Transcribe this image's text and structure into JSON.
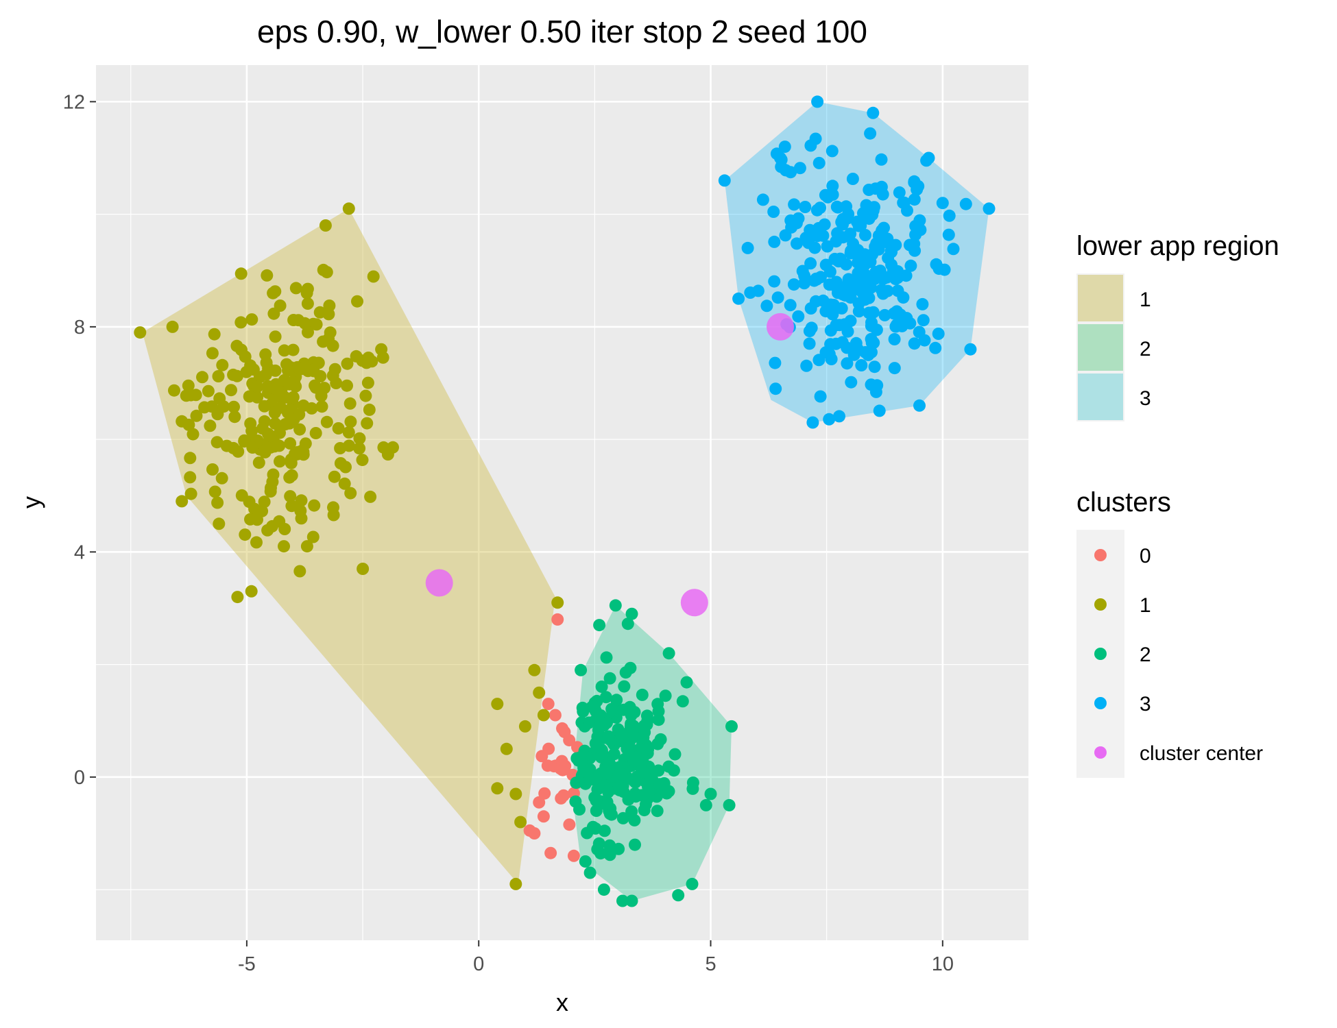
{
  "chart_data": {
    "type": "scatter",
    "title": "eps 0.90, w_lower 0.50 iter stop 2 seed 100",
    "xlabel": "x",
    "ylabel": "y",
    "xlim": [
      -8.25,
      11.85
    ],
    "ylim": [
      -2.9,
      12.65
    ],
    "x_ticks": [
      -5,
      0,
      5,
      10
    ],
    "y_ticks": [
      0,
      4,
      8,
      12
    ],
    "x_tick_labels": [
      "-5",
      "0",
      "5",
      "10"
    ],
    "y_tick_labels": [
      "0",
      "4",
      "8",
      "12"
    ],
    "grid": true,
    "legend_position": "right",
    "colors": {
      "panel_background": "#ebebeb",
      "grid": "#ffffff",
      "cluster_0": "#f8766d",
      "cluster_1": "#a3a500",
      "cluster_2": "#00bf7d",
      "cluster_3": "#00b0f6",
      "cluster_center": "#e76bf3",
      "region_1": "#e0d6a8",
      "region_2": "#a6ddbc",
      "region_3": "#a6dde2"
    },
    "regions_legend": {
      "title": "lower app region",
      "entries": [
        {
          "label": "1",
          "fill": "#dfd9a9"
        },
        {
          "label": "2",
          "fill": "#aee0c0"
        },
        {
          "label": "3",
          "fill": "#aee1e4"
        }
      ]
    },
    "clusters_legend": {
      "title": "clusters",
      "entries": [
        {
          "label": "0",
          "color": "#f8766d"
        },
        {
          "label": "1",
          "color": "#a3a500"
        },
        {
          "label": "2",
          "color": "#00bf7d"
        },
        {
          "label": "3",
          "color": "#00b0f6"
        },
        {
          "label": "cluster center",
          "color": "#e76bf3"
        }
      ]
    },
    "regions": [
      {
        "name": "1",
        "fill": "#ccb93f",
        "opacity": 0.4,
        "polygon": [
          [
            -7.25,
            7.9
          ],
          [
            -2.8,
            10.1
          ],
          [
            1.65,
            3.2
          ],
          [
            0.85,
            -1.9
          ],
          [
            -6.3,
            5.0
          ]
        ]
      },
      {
        "name": "2",
        "fill": "#00bf7d",
        "opacity": 0.3,
        "polygon": [
          [
            2.95,
            3.05
          ],
          [
            4.1,
            2.2
          ],
          [
            5.45,
            0.9
          ],
          [
            5.4,
            -0.5
          ],
          [
            4.6,
            -1.9
          ],
          [
            3.3,
            -2.2
          ],
          [
            2.2,
            -1.5
          ],
          [
            2.0,
            -0.2
          ],
          [
            2.25,
            1.9
          ]
        ]
      },
      {
        "name": "3",
        "fill": "#00b0f6",
        "opacity": 0.3,
        "polygon": [
          [
            7.3,
            12.0
          ],
          [
            8.5,
            11.8
          ],
          [
            9.7,
            11.0
          ],
          [
            11.0,
            10.1
          ],
          [
            10.6,
            7.6
          ],
          [
            9.5,
            6.6
          ],
          [
            7.2,
            6.3
          ],
          [
            6.3,
            6.7
          ],
          [
            5.6,
            8.5
          ],
          [
            5.3,
            10.6
          ]
        ]
      }
    ],
    "centers": [
      {
        "x": -0.85,
        "y": 3.45
      },
      {
        "x": 4.65,
        "y": 3.1
      },
      {
        "x": 6.5,
        "y": 8.0
      }
    ],
    "series": [
      {
        "name": "0",
        "cluster_center": [
          1.7,
          0.3
        ],
        "spread": [
          0.3,
          0.55
        ],
        "count": 30,
        "points": [
          [
            1.7,
            2.8
          ],
          [
            1.5,
            1.3
          ],
          [
            1.3,
            -0.45
          ],
          [
            1.1,
            -0.95
          ],
          [
            1.55,
            -1.35
          ],
          [
            2.05,
            -1.4
          ],
          [
            1.65,
            1.1
          ],
          [
            1.85,
            0.8
          ],
          [
            1.4,
            -0.7
          ],
          [
            1.2,
            -1.0
          ]
        ]
      },
      {
        "name": "1",
        "cluster_center": [
          -4.3,
          6.6
        ],
        "spread": [
          0.95,
          1.1
        ],
        "count": 260,
        "points": [
          [
            -7.3,
            7.9
          ],
          [
            -2.8,
            10.1
          ],
          [
            -3.3,
            9.8
          ],
          [
            -5.2,
            3.2
          ],
          [
            -4.9,
            3.3
          ],
          [
            -2.5,
            3.7
          ],
          [
            1.7,
            3.1
          ],
          [
            0.8,
            -1.9
          ],
          [
            0.4,
            -0.2
          ],
          [
            0.4,
            1.3
          ],
          [
            0.6,
            0.5
          ],
          [
            0.9,
            -0.8
          ],
          [
            0.8,
            -0.3
          ],
          [
            1.2,
            1.9
          ],
          [
            1.3,
            1.5
          ],
          [
            1.0,
            0.9
          ],
          [
            1.4,
            1.1
          ],
          [
            -6.4,
            4.9
          ],
          [
            -5.6,
            4.5
          ],
          [
            -4.2,
            4.1
          ],
          [
            -3.7,
            4.1
          ],
          [
            -2.1,
            7.6
          ],
          [
            -6.6,
            8.0
          ]
        ]
      },
      {
        "name": "2",
        "cluster_center": [
          3.0,
          0.35
        ],
        "spread": [
          0.6,
          0.75
        ],
        "count": 230,
        "points": [
          [
            2.95,
            3.05
          ],
          [
            3.3,
            2.9
          ],
          [
            2.6,
            2.7
          ],
          [
            4.1,
            2.2
          ],
          [
            5.45,
            0.9
          ],
          [
            5.4,
            -0.5
          ],
          [
            4.6,
            -1.9
          ],
          [
            3.3,
            -2.2
          ],
          [
            3.1,
            -2.2
          ],
          [
            4.3,
            -2.1
          ],
          [
            2.3,
            -1.5
          ],
          [
            2.4,
            -1.7
          ],
          [
            5.0,
            -0.3
          ],
          [
            4.9,
            -0.5
          ],
          [
            2.1,
            -0.1
          ],
          [
            2.2,
            1.9
          ],
          [
            2.7,
            -2.0
          ]
        ]
      },
      {
        "name": "3",
        "cluster_center": [
          8.15,
          9.0
        ],
        "spread": [
          0.95,
          1.05
        ],
        "count": 270,
        "points": [
          [
            7.3,
            12.0
          ],
          [
            8.5,
            11.8
          ],
          [
            9.7,
            11.0
          ],
          [
            11.0,
            10.1
          ],
          [
            10.6,
            7.6
          ],
          [
            9.5,
            6.6
          ],
          [
            7.2,
            6.3
          ],
          [
            6.4,
            6.9
          ],
          [
            5.6,
            8.5
          ],
          [
            5.3,
            10.6
          ],
          [
            5.8,
            9.4
          ],
          [
            6.5,
            11.0
          ],
          [
            6.6,
            11.2
          ],
          [
            10.0,
            10.2
          ]
        ]
      }
    ],
    "seed": 100
  }
}
